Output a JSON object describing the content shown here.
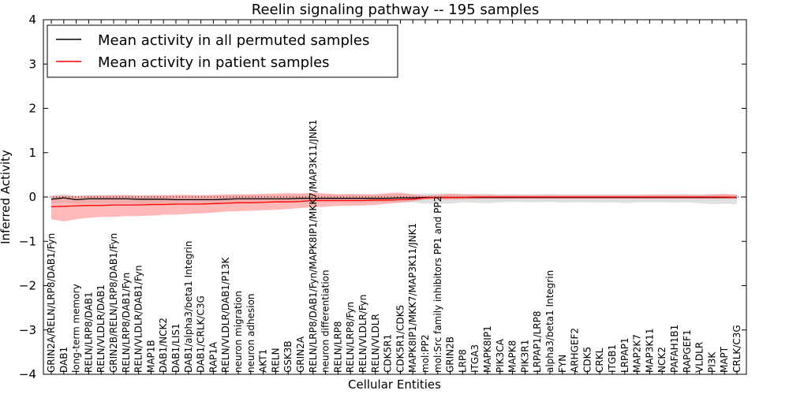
{
  "chart_data": {
    "type": "line",
    "title": "Reelin signaling pathway -- 195 samples",
    "xlabel": "Cellular Entities",
    "ylabel": "Inferred Activity",
    "ylim": [
      -4,
      4
    ],
    "yticks": [
      -4,
      -3,
      -2,
      -1,
      0,
      1,
      2,
      3,
      4
    ],
    "ytick_labels": [
      "−4",
      "−3",
      "−2",
      "−1",
      "0",
      "1",
      "2",
      "3",
      "4"
    ],
    "categories": [
      "GRIN2A/RELN/LRP8/DAB1/Fyn",
      "DAB1",
      "long-term memory",
      "RELN/LRP8/DAB1",
      "RELN/VLDLR/DAB1",
      "GRIN2B/RELN/LRP8/DAB1/Fyn",
      "RELN/LRP8/DAB1/Fyn",
      "RELN/VLDLR/DAB1/Fyn",
      "MAP1B",
      "DAB1/NCK2",
      "DAB1/LIS1",
      "DAB1/alpha3/beta1 Integrin",
      "DAB1/CRLK/C3G",
      "RAP1A",
      "RELN/VLDLR/DAB1/P13K",
      "neuron migration",
      "neuron adhesion",
      "AKT1",
      "RELN",
      "GSK3B",
      "GRIN2A",
      "RELN/LRP8/DAB1/Fyn/MAPK8IP1/MKK7/MAP3K11/JNK1",
      "neuron differentiation",
      "RELN/LRP8",
      "RELN/LRP8/Fyn",
      "RELN/VLDLR/Fyn",
      "RELN/VLDLR",
      "CDK5R1",
      "CDK5R1/CDK5",
      "MAPK8IP1/MKK7/MAP3K11/JNK1",
      "mol:PP2",
      "mol:Src family inhibitors PP1 and PP2",
      "GRIN2B",
      "LRP8",
      "ITGA3",
      "MAPK8IP1",
      "PIK3CA",
      "MAPK8",
      "PIK3R1",
      "LRPAP1/LRP8",
      "alpha3/beta1 Integrin",
      "FYN",
      "ARHGEF2",
      "CDK5",
      "CRKL",
      "ITGB1",
      "LRPAP1",
      "MAP2K7",
      "MAP3K11",
      "NCK2",
      "PAFAH1B1",
      "RAPGEF1",
      "VLDLR",
      "PI3K",
      "MAPT",
      "CRLK/C3G"
    ],
    "series": [
      {
        "name": "Mean activity in all permuted samples",
        "color": "#000000",
        "band_color": "#bbbbbb",
        "values": [
          -0.05,
          -0.02,
          -0.06,
          -0.04,
          -0.04,
          -0.04,
          -0.04,
          -0.05,
          -0.05,
          -0.05,
          -0.06,
          -0.06,
          -0.06,
          -0.06,
          -0.05,
          -0.04,
          -0.04,
          -0.04,
          -0.04,
          -0.04,
          -0.03,
          -0.03,
          -0.03,
          -0.03,
          -0.03,
          -0.03,
          -0.03,
          -0.03,
          -0.02,
          -0.02,
          -0.01,
          -0.01,
          -0.01,
          -0.01,
          -0.01,
          -0.01,
          -0.01,
          -0.01,
          -0.01,
          -0.01,
          -0.01,
          -0.01,
          -0.01,
          -0.01,
          -0.01,
          -0.01,
          -0.01,
          -0.01,
          -0.01,
          -0.01,
          -0.01,
          -0.01,
          -0.01,
          -0.01,
          -0.01,
          -0.01
        ],
        "lower": [
          -0.15,
          -0.12,
          -0.15,
          -0.14,
          -0.14,
          -0.14,
          -0.14,
          -0.15,
          -0.15,
          -0.15,
          -0.15,
          -0.15,
          -0.15,
          -0.15,
          -0.14,
          -0.13,
          -0.13,
          -0.13,
          -0.13,
          -0.13,
          -0.12,
          -0.12,
          -0.12,
          -0.12,
          -0.12,
          -0.12,
          -0.12,
          -0.12,
          -0.12,
          -0.12,
          -0.15,
          -0.15,
          -0.15,
          -0.12,
          -0.13,
          -0.14,
          -0.12,
          -0.11,
          -0.12,
          -0.12,
          -0.11,
          -0.13,
          -0.12,
          -0.12,
          -0.13,
          -0.12,
          -0.14,
          -0.12,
          -0.12,
          -0.12,
          -0.13,
          -0.12,
          -0.14,
          -0.16,
          -0.15,
          -0.16
        ],
        "upper": [
          0.04,
          0.07,
          0.03,
          0.05,
          0.05,
          0.05,
          0.05,
          0.04,
          0.04,
          0.04,
          0.03,
          0.03,
          0.03,
          0.03,
          0.04,
          0.05,
          0.05,
          0.05,
          0.05,
          0.05,
          0.06,
          0.06,
          0.06,
          0.06,
          0.06,
          0.06,
          0.06,
          0.06,
          0.07,
          0.07,
          0.08,
          0.08,
          0.08,
          0.07,
          0.07,
          0.07,
          0.06,
          0.07,
          0.06,
          0.06,
          0.07,
          0.06,
          0.06,
          0.06,
          0.06,
          0.06,
          0.06,
          0.06,
          0.06,
          0.06,
          0.06,
          0.06,
          0.06,
          0.07,
          0.06,
          0.06
        ]
      },
      {
        "name": "Mean activity in patient samples",
        "color": "#ff0000",
        "band_color": "#ff7f7f",
        "values": [
          -0.22,
          -0.21,
          -0.2,
          -0.19,
          -0.19,
          -0.18,
          -0.18,
          -0.18,
          -0.17,
          -0.17,
          -0.16,
          -0.16,
          -0.16,
          -0.15,
          -0.14,
          -0.13,
          -0.13,
          -0.12,
          -0.11,
          -0.11,
          -0.1,
          -0.08,
          -0.08,
          -0.08,
          -0.08,
          -0.08,
          -0.07,
          -0.07,
          -0.06,
          -0.05,
          -0.02,
          -0.01,
          -0.01,
          -0.01,
          0.0,
          0.0,
          0.0,
          0.0,
          0.0,
          0.0,
          0.0,
          0.0,
          0.0,
          0.0,
          0.0,
          0.0,
          0.0,
          0.0,
          0.0,
          0.0,
          0.0,
          0.0,
          0.0,
          0.0,
          0.0,
          -0.01
        ],
        "lower": [
          -0.5,
          -0.55,
          -0.5,
          -0.47,
          -0.45,
          -0.45,
          -0.43,
          -0.43,
          -0.42,
          -0.4,
          -0.4,
          -0.38,
          -0.37,
          -0.35,
          -0.33,
          -0.32,
          -0.31,
          -0.3,
          -0.29,
          -0.27,
          -0.25,
          -0.23,
          -0.22,
          -0.2,
          -0.2,
          -0.19,
          -0.18,
          -0.15,
          -0.13,
          -0.1,
          -0.06,
          -0.05,
          -0.06,
          -0.05,
          -0.05,
          -0.04,
          -0.04,
          -0.04,
          -0.04,
          -0.04,
          -0.04,
          -0.04,
          -0.04,
          -0.04,
          -0.04,
          -0.04,
          -0.04,
          -0.04,
          -0.04,
          -0.04,
          -0.04,
          -0.04,
          -0.04,
          -0.04,
          -0.04,
          -0.04
        ],
        "upper": [
          0.02,
          0.03,
          0.02,
          0.03,
          0.03,
          0.04,
          0.04,
          0.03,
          0.04,
          0.04,
          0.05,
          0.05,
          0.04,
          0.05,
          0.06,
          0.06,
          0.06,
          0.07,
          0.08,
          0.09,
          0.08,
          0.1,
          0.08,
          0.06,
          0.07,
          0.06,
          0.06,
          0.09,
          0.1,
          0.06,
          0.03,
          0.05,
          0.07,
          0.06,
          0.05,
          0.05,
          0.04,
          0.04,
          0.04,
          0.04,
          0.04,
          0.04,
          0.04,
          0.04,
          0.04,
          0.04,
          0.04,
          0.04,
          0.05,
          0.05,
          0.05,
          0.05,
          0.04,
          0.05,
          0.07,
          0.05
        ]
      }
    ],
    "legend": {
      "location": "top-left",
      "entries": [
        "Mean activity in all permuted samples",
        "Mean activity in patient samples"
      ]
    },
    "zero_line": true,
    "grid": false
  }
}
